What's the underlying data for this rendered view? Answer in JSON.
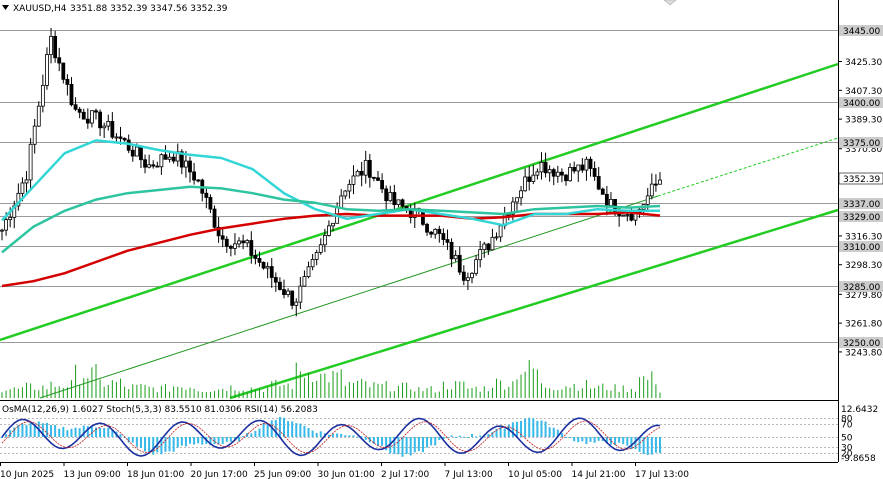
{
  "header": {
    "symbol": "XAUUSD,H4",
    "ohlc": "3351.88 3352.39 3347.56 3352.39"
  },
  "price_axis": {
    "ticks": [
      "3425.30",
      "3407.30",
      "3389.30",
      "3370.80",
      "3316.30",
      "3298.30",
      "3279.80",
      "3261.80",
      "3243.80"
    ],
    "tagged_levels": [
      {
        "label": "3445.00",
        "value": 3445.0,
        "kind": "grey"
      },
      {
        "label": "3400.00",
        "value": 3400.0,
        "kind": "grey"
      },
      {
        "label": "3375.00",
        "value": 3375.0,
        "kind": "grey"
      },
      {
        "label": "3352.39",
        "value": 3352.39,
        "kind": "current"
      },
      {
        "label": "3337.00",
        "value": 3337.0,
        "kind": "grey"
      },
      {
        "label": "3329.00",
        "value": 3329.0,
        "kind": "grey"
      },
      {
        "label": "3310.00",
        "value": 3310.0,
        "kind": "grey"
      },
      {
        "label": "3285.00",
        "value": 3285.0,
        "kind": "grey"
      },
      {
        "label": "3250.00",
        "value": 3250.0,
        "kind": "grey"
      }
    ]
  },
  "time_axis": {
    "labels": [
      "10 Jun 2025",
      "13 Jun 09:00",
      "18 Jun 01:00",
      "20 Jun 17:00",
      "25 Jun 09:00",
      "30 Jun 01:00",
      "2 Jul 17:00",
      "7 Jul 13:00",
      "10 Jul 05:00",
      "14 Jul 21:00",
      "17 Jul 13:00"
    ]
  },
  "indicator": {
    "label": "OsMA(12,26,9) 1.6027  Stoch(5,3,3) 83.5510 81.0306  RSI(14) 56.2083",
    "scale_top": "12.6432",
    "scale_bottom": "-9.8658",
    "levels": [
      "80",
      "70",
      "50",
      "30",
      "20"
    ]
  },
  "colors": {
    "candles": "#000000",
    "grid_line": "#9a9a9a",
    "ema_red": "#d40000",
    "ema_cyan": "#33d6d6",
    "ema_teal": "#2ec4a0",
    "channel": "#22cc22",
    "trend": "#229922",
    "osma": "#36b8e8",
    "stoch_main": "#1c2fa0",
    "stoch_signal": "#c01818",
    "rsi": "#5566dd",
    "price_tag": "#cccccc",
    "current_tag": "#ffffff"
  },
  "chart_data": {
    "type": "candlestick",
    "symbol": "XAUUSD",
    "timeframe": "H4",
    "ylim": [
      3240,
      3462
    ],
    "current_price": 3352.39,
    "series": [
      {
        "name": "EMA (red)",
        "values": [
          3285,
          3288,
          3293,
          3300,
          3307,
          3312,
          3317,
          3321,
          3324,
          3327,
          3329,
          3330,
          3329,
          3329,
          3329,
          3327,
          3328,
          3330,
          3330,
          3330,
          3331,
          3329
        ]
      },
      {
        "name": "EMA (cyan)",
        "values": [
          3326,
          3347,
          3368,
          3376,
          3374,
          3370,
          3367,
          3365,
          3358,
          3343,
          3333,
          3327,
          3330,
          3333,
          3330,
          3327,
          3323,
          3330,
          3330,
          3333,
          3332,
          3332
        ]
      },
      {
        "name": "EMA (teal)",
        "values": [
          3306,
          3322,
          3332,
          3339,
          3343,
          3345,
          3347,
          3346,
          3343,
          3339,
          3337,
          3333,
          3332,
          3333,
          3332,
          3331,
          3330,
          3333,
          3334,
          3335,
          3334,
          3335
        ]
      }
    ],
    "close": [
      3320,
      3355,
      3440,
      3395,
      3388,
      3375,
      3360,
      3368,
      3352,
      3315,
      3310,
      3292,
      3275,
      3305,
      3346,
      3360,
      3337,
      3330,
      3315,
      3292,
      3312,
      3340,
      3362,
      3355,
      3360,
      3335,
      3330,
      3352
    ],
    "volume": [
      8,
      10,
      12,
      22,
      14,
      10,
      9,
      11,
      8,
      10,
      9,
      12,
      24,
      20,
      13,
      11,
      10,
      8,
      12,
      9,
      14,
      26,
      11,
      12,
      10,
      9,
      18,
      7
    ]
  }
}
